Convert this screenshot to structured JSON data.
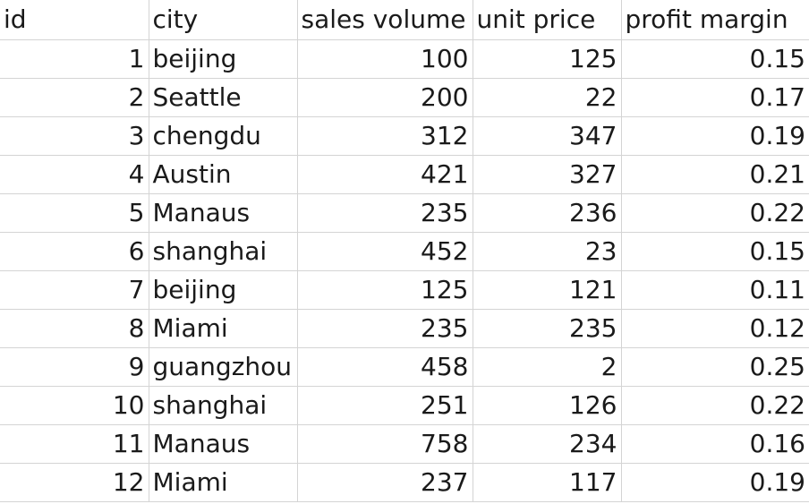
{
  "table": {
    "headers": [
      "id",
      "city",
      "sales volume",
      "unit price",
      "profit margin"
    ],
    "rows": [
      [
        "1",
        "beijing",
        "100",
        "125",
        "0.15"
      ],
      [
        "2",
        "Seattle",
        "200",
        "22",
        "0.17"
      ],
      [
        "3",
        "chengdu",
        "312",
        "347",
        "0.19"
      ],
      [
        "4",
        "Austin",
        "421",
        "327",
        "0.21"
      ],
      [
        "5",
        "Manaus",
        "235",
        "236",
        "0.22"
      ],
      [
        "6",
        "shanghai",
        "452",
        "23",
        "0.15"
      ],
      [
        "7",
        "beijing",
        "125",
        "121",
        "0.11"
      ],
      [
        "8",
        "Miami",
        "235",
        "235",
        "0.12"
      ],
      [
        "9",
        "guangzhou",
        "458",
        "2",
        "0.25"
      ],
      [
        "10",
        "shanghai",
        "251",
        "126",
        "0.22"
      ],
      [
        "11",
        "Manaus",
        "758",
        "234",
        "0.16"
      ],
      [
        "12",
        "Miami",
        "237",
        "117",
        "0.19"
      ]
    ]
  }
}
